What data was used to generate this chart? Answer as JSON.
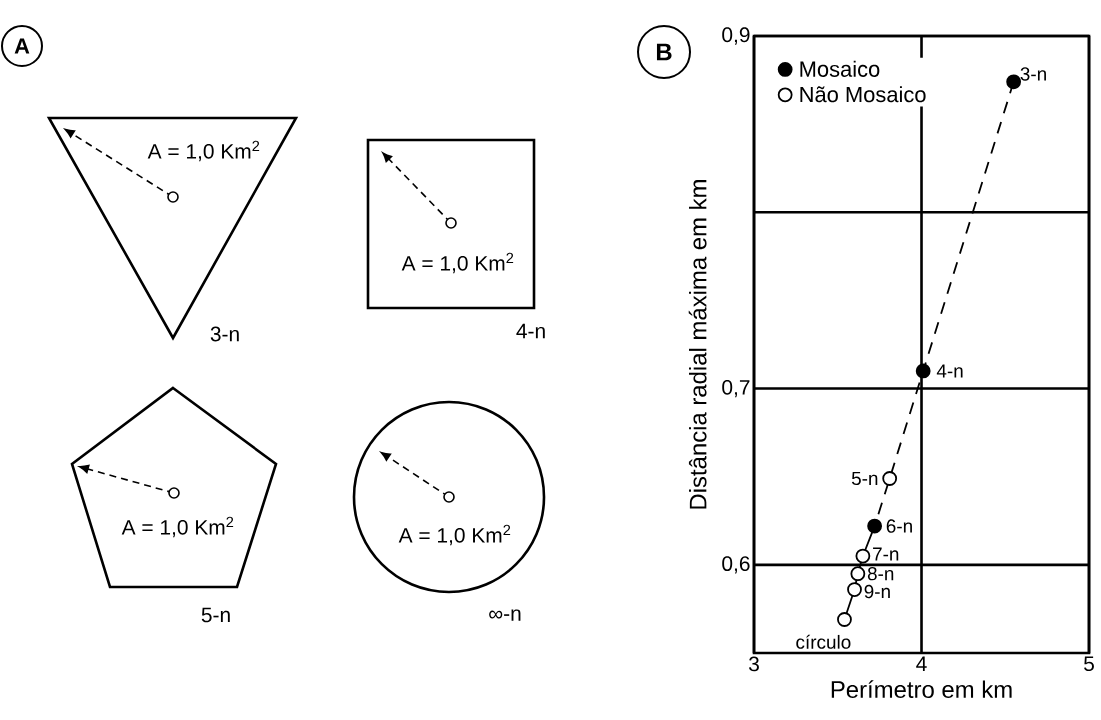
{
  "chart_data": [
    {
      "type": "other",
      "title": "A",
      "annotations": [
        "A = 1,0 Km$^{2}$",
        "A = 1,0 Km$^{2}$",
        "A = 1,0 Km$^{2}$",
        "A = 1,0 Km$^{2}$",
        "3-n",
        "4-n",
        "5-n",
        "∞-n"
      ]
    },
    {
      "type": "scatter",
      "title": "B",
      "xlabel": "Perímetro em km",
      "ylabel": "Distância radial máxima em km",
      "xlim": [
        3,
        5
      ],
      "ylim": [
        0.55,
        0.9
      ],
      "xticks": [
        3,
        4,
        5
      ],
      "yticks": [
        {
          "value": 0.6,
          "label": "0,6"
        },
        {
          "value": 0.7,
          "label": "0,7"
        },
        {
          "value": 0.8,
          "label": null
        },
        {
          "value": 0.9,
          "label": "0,9"
        }
      ],
      "grid": true,
      "legend": "top left",
      "series": [
        {
          "type": "line",
          "color": "#000000",
          "line_style": "dashed",
          "marker": "none",
          "x": [
            4.55,
            4.01,
            3.81,
            3.72
          ],
          "values": [
            0.874,
            0.71,
            0.649,
            0.622
          ]
        },
        {
          "type": "line",
          "color": "#000000",
          "line_style": "solid",
          "marker": "none",
          "x": [
            3.72,
            3.65,
            3.62,
            3.6,
            3.54
          ],
          "values": [
            0.622,
            0.605,
            0.595,
            0.586,
            0.569
          ]
        },
        {
          "name": "Mosaico",
          "color": "#000000",
          "marker": "circle",
          "x": [
            4.55,
            4.01,
            3.72
          ],
          "values": [
            0.874,
            0.71,
            0.622
          ]
        },
        {
          "name": "Não Mosaico",
          "color": "#ffffff",
          "marker": "circle",
          "x": [
            3.81,
            3.65,
            3.62,
            3.6,
            3.54
          ],
          "values": [
            0.649,
            0.605,
            0.595,
            0.586,
            0.569
          ]
        }
      ],
      "annotations": [
        {
          "text": "3-n",
          "x": 4.55,
          "y": 0.874
        },
        {
          "text": "4-n",
          "x": 4.01,
          "y": 0.71
        },
        {
          "text": "5-n",
          "x": 3.81,
          "y": 0.649
        },
        {
          "text": "6-n",
          "x": 3.72,
          "y": 0.622
        },
        {
          "text": "7-n",
          "x": 3.65,
          "y": 0.605
        },
        {
          "text": "8-n",
          "x": 3.62,
          "y": 0.595
        },
        {
          "text": "9-n",
          "x": 3.6,
          "y": 0.586
        },
        {
          "text": "círculo",
          "x": 3.54,
          "y": 0.569
        }
      ]
    }
  ]
}
